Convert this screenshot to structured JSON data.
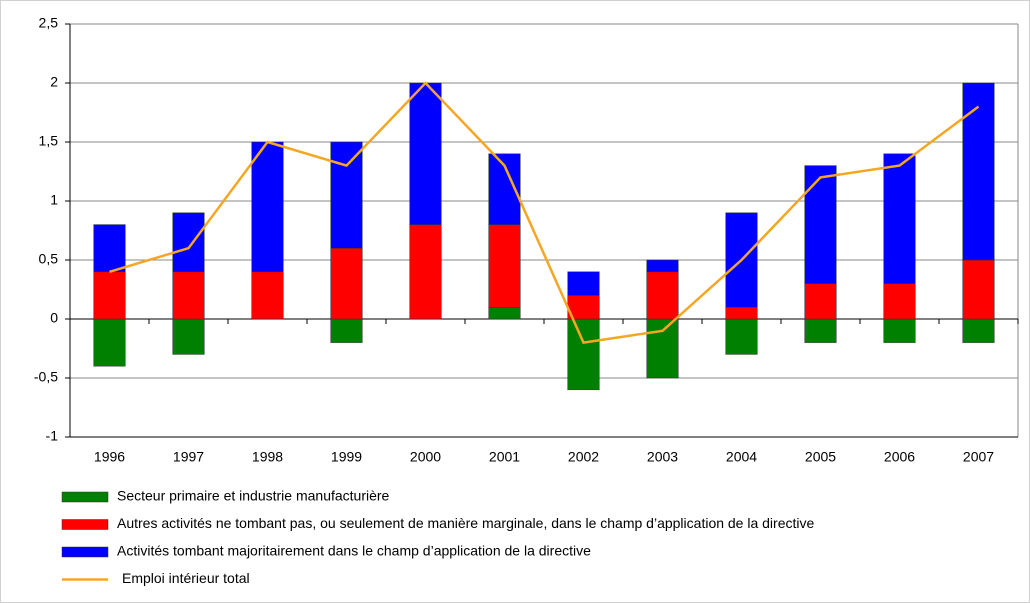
{
  "chart_data": {
    "type": "bar",
    "stacked": true,
    "grid": true,
    "categories": [
      "1996",
      "1997",
      "1998",
      "1999",
      "2000",
      "2001",
      "2002",
      "2003",
      "2004",
      "2005",
      "2006",
      "2007"
    ],
    "series": [
      {
        "name": "Secteur primaire et industrie manufacturière",
        "color": "#008000",
        "values": [
          -0.4,
          -0.3,
          0,
          -0.2,
          0,
          0.1,
          -0.6,
          -0.5,
          -0.3,
          -0.2,
          -0.2,
          -0.2
        ]
      },
      {
        "name": "Autres activités ne tombant pas, ou seulement de manière marginale, dans le champ d’application de la directive",
        "color": "#ff0000",
        "values": [
          0.4,
          0.4,
          0.4,
          0.6,
          0.8,
          0.7,
          0.2,
          0.4,
          0.1,
          0.3,
          0.3,
          0.5
        ]
      },
      {
        "name": "Activités tombant majoritairement dans le champ d’application de la directive",
        "color": "#0000ff",
        "values": [
          0.4,
          0.5,
          1.1,
          0.9,
          1.2,
          0.6,
          0.2,
          0.1,
          0.8,
          1.0,
          1.1,
          1.5
        ]
      },
      {
        "name": "Emploi intérieur total",
        "color": "#f5a623",
        "type": "line",
        "values": [
          0.4,
          0.6,
          1.5,
          1.3,
          2.0,
          1.3,
          -0.2,
          -0.1,
          0.5,
          1.2,
          1.3,
          1.8
        ]
      }
    ],
    "ylim": [
      -1,
      2.5
    ],
    "yticks": [
      -1,
      {
        "value": -0.5,
        "label": "-0,5"
      },
      0,
      {
        "value": 0.5,
        "label": "0,5"
      },
      1,
      {
        "value": 1.5,
        "label": "1,5"
      },
      2,
      {
        "value": 2.5,
        "label": "2,5"
      }
    ]
  }
}
